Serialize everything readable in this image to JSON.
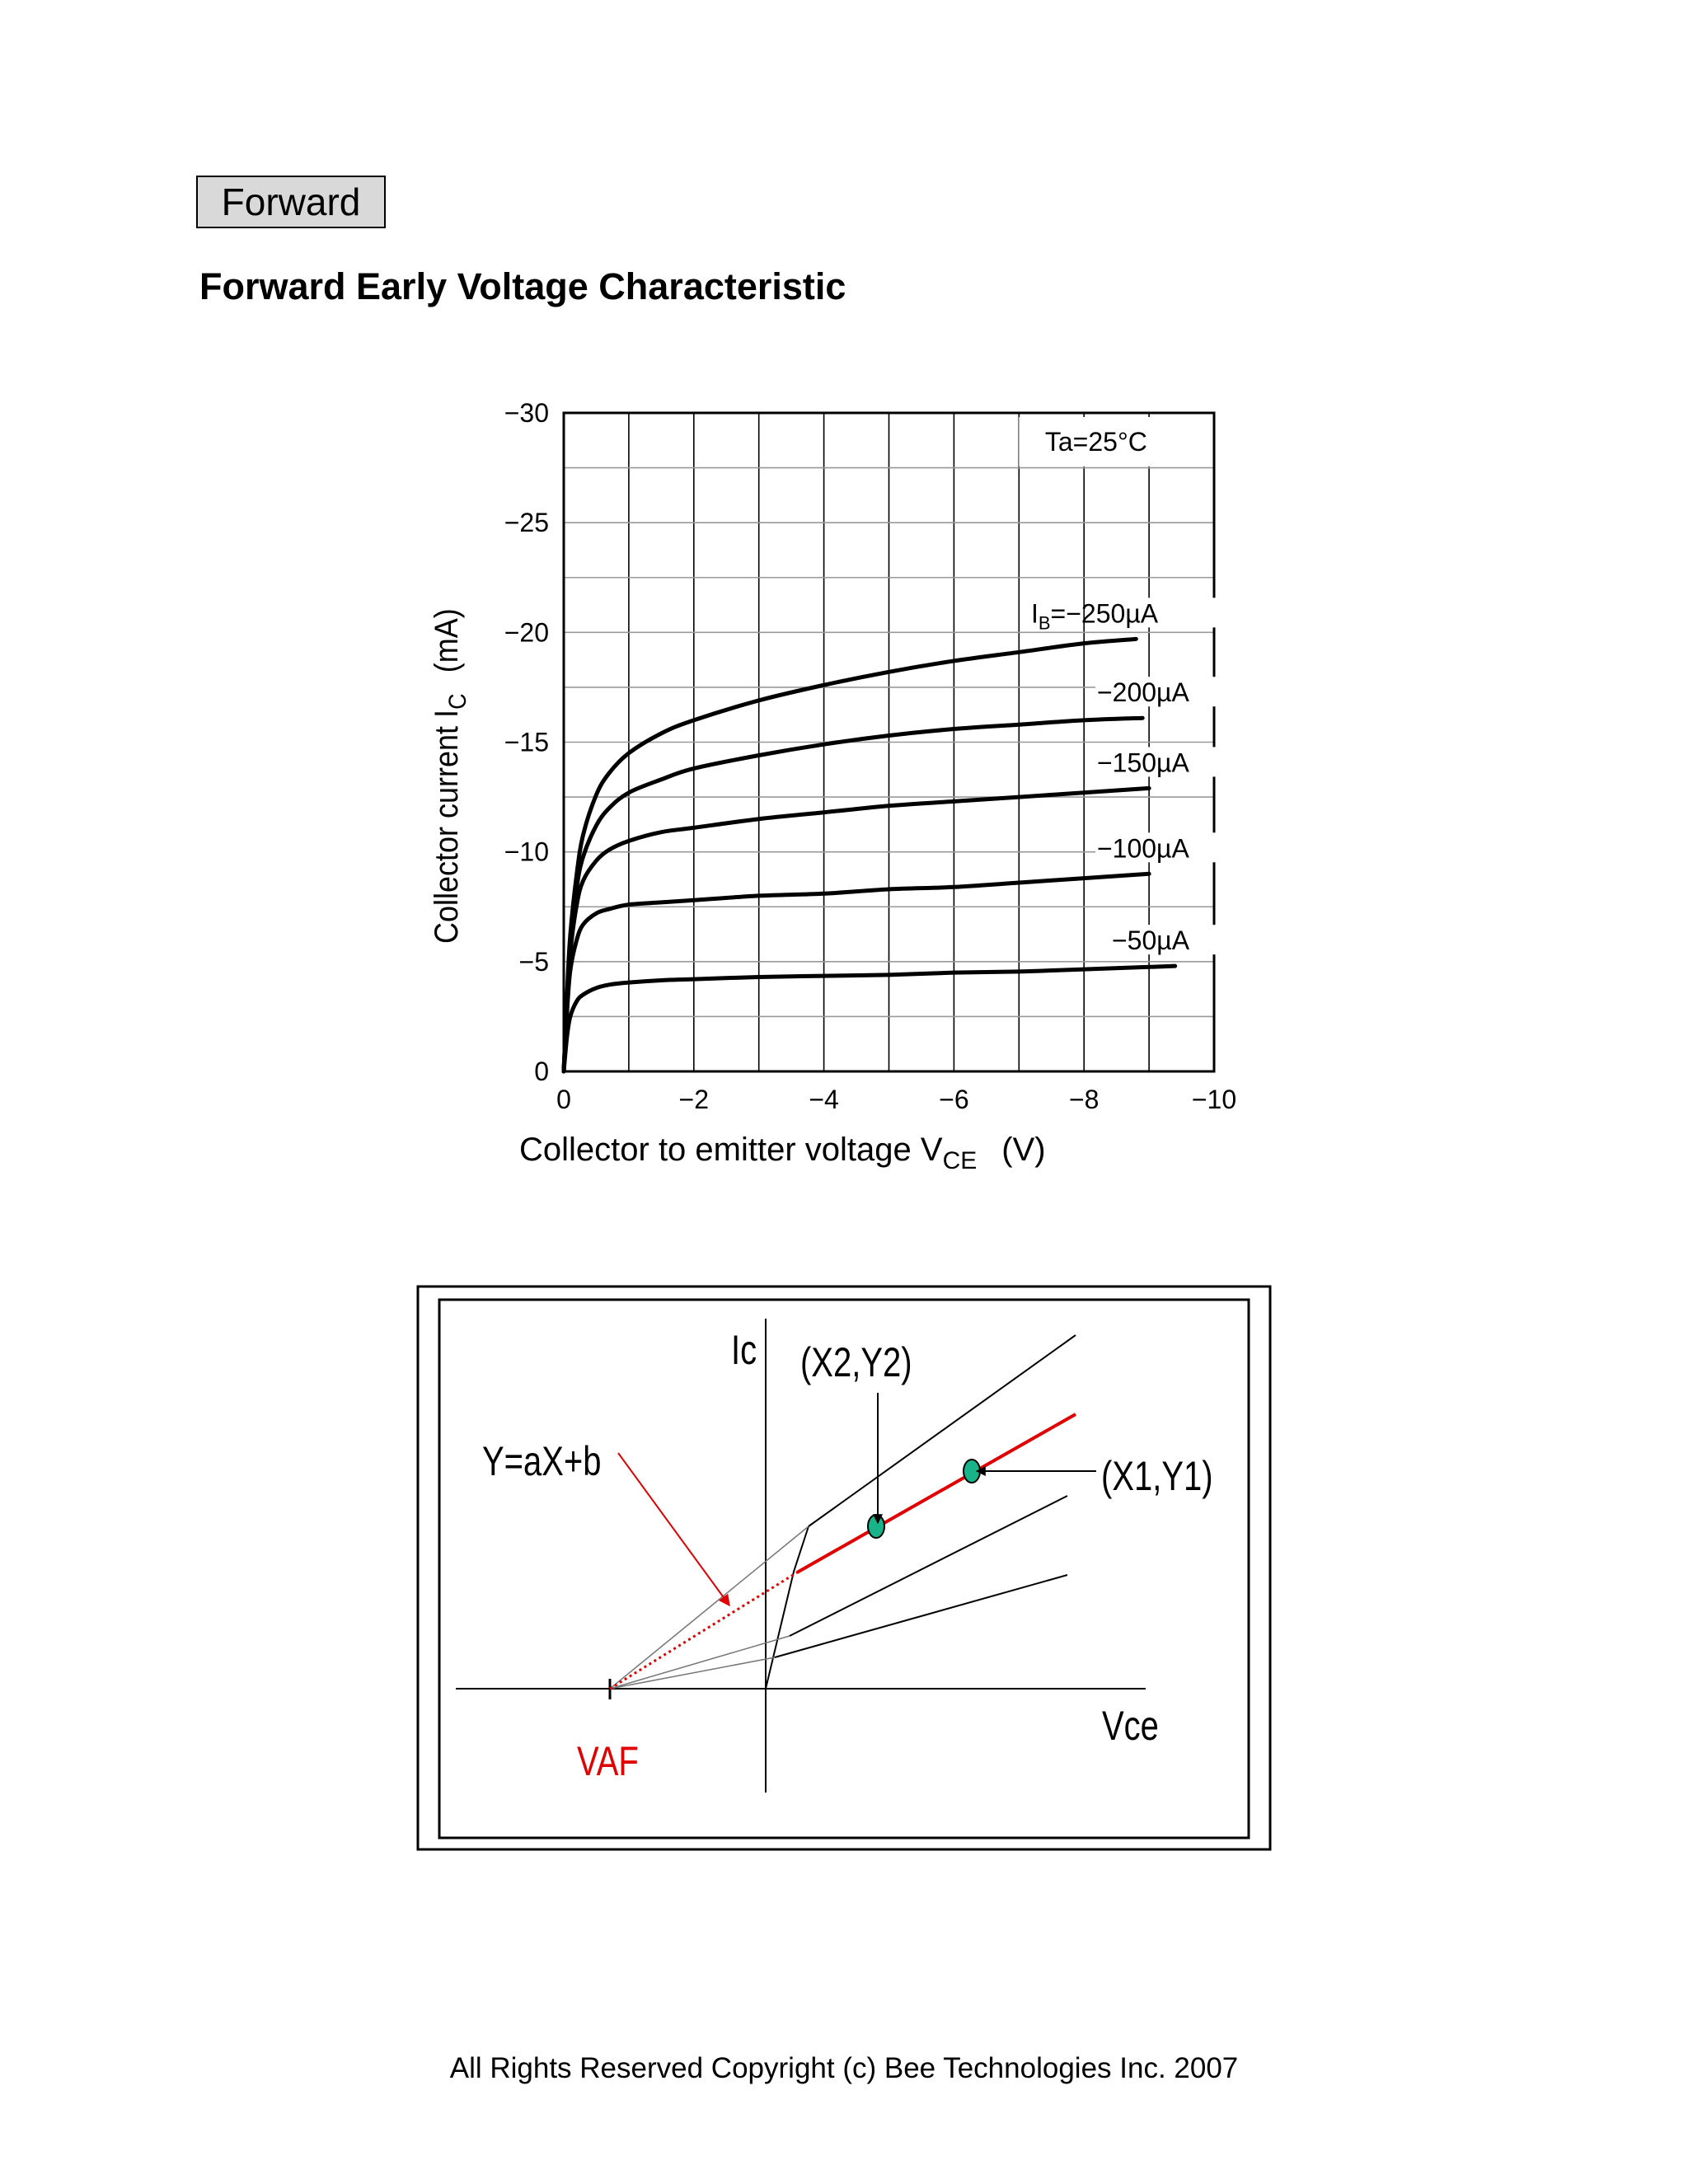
{
  "header": {
    "tag_label": "Forward",
    "title": "Forward Early Voltage Characteristic"
  },
  "chart_data": [
    {
      "type": "line",
      "title": "",
      "xlabel": "Collector to emitter voltage V",
      "xlabel_subscript": "CE",
      "xlabel_unit": "(V)",
      "ylabel": "Collector current I",
      "ylabel_subscript": "C",
      "ylabel_unit": "(mA)",
      "xlim": [
        0,
        -10
      ],
      "ylim": [
        0,
        -30
      ],
      "xticks": [
        0,
        -2,
        -4,
        -6,
        -8,
        -10
      ],
      "xtick_labels": [
        "0",
        "−2",
        "−4",
        "−6",
        "−8",
        "−10"
      ],
      "yticks": [
        0,
        -5,
        -10,
        -15,
        -20,
        -25,
        -30
      ],
      "ytick_labels": [
        "0",
        "−5",
        "−10",
        "−15",
        "−20",
        "−25",
        "−30"
      ],
      "grid": true,
      "annotation": "Ta=25°C",
      "series": [
        {
          "name": "I_B=−250µA",
          "label_main": "I",
          "label_sub": "B",
          "label_rest": "=−250µA",
          "points": [
            [
              0,
              0
            ],
            [
              -0.05,
              -3.5
            ],
            [
              -0.1,
              -6.2
            ],
            [
              -0.2,
              -9.0
            ],
            [
              -0.3,
              -10.8
            ],
            [
              -0.5,
              -12.6
            ],
            [
              -0.7,
              -13.6
            ],
            [
              -1,
              -14.5
            ],
            [
              -1.5,
              -15.4
            ],
            [
              -2,
              -16.0
            ],
            [
              -3,
              -16.9
            ],
            [
              -4,
              -17.6
            ],
            [
              -5,
              -18.2
            ],
            [
              -6,
              -18.7
            ],
            [
              -7,
              -19.1
            ],
            [
              -8,
              -19.5
            ],
            [
              -8.8,
              -19.7
            ]
          ]
        },
        {
          "name": "−200µA",
          "points": [
            [
              0,
              0
            ],
            [
              -0.05,
              -3.2
            ],
            [
              -0.1,
              -5.8
            ],
            [
              -0.2,
              -8.4
            ],
            [
              -0.3,
              -9.8
            ],
            [
              -0.5,
              -11.2
            ],
            [
              -0.7,
              -12.0
            ],
            [
              -1,
              -12.7
            ],
            [
              -1.5,
              -13.3
            ],
            [
              -2,
              -13.8
            ],
            [
              -3,
              -14.4
            ],
            [
              -4,
              -14.9
            ],
            [
              -5,
              -15.3
            ],
            [
              -6,
              -15.6
            ],
            [
              -7,
              -15.8
            ],
            [
              -8,
              -16.0
            ],
            [
              -8.9,
              -16.1
            ]
          ]
        },
        {
          "name": "−150µA",
          "points": [
            [
              0,
              0
            ],
            [
              -0.05,
              -3.0
            ],
            [
              -0.1,
              -5.4
            ],
            [
              -0.2,
              -7.6
            ],
            [
              -0.3,
              -8.7
            ],
            [
              -0.5,
              -9.6
            ],
            [
              -0.7,
              -10.1
            ],
            [
              -1,
              -10.5
            ],
            [
              -1.5,
              -10.9
            ],
            [
              -2,
              -11.1
            ],
            [
              -3,
              -11.5
            ],
            [
              -4,
              -11.8
            ],
            [
              -5,
              -12.1
            ],
            [
              -6,
              -12.3
            ],
            [
              -7,
              -12.5
            ],
            [
              -8,
              -12.7
            ],
            [
              -9,
              -12.9
            ]
          ]
        },
        {
          "name": "−100µA",
          "points": [
            [
              0,
              0
            ],
            [
              -0.05,
              -2.7
            ],
            [
              -0.1,
              -4.6
            ],
            [
              -0.2,
              -6.0
            ],
            [
              -0.3,
              -6.7
            ],
            [
              -0.5,
              -7.2
            ],
            [
              -0.7,
              -7.4
            ],
            [
              -1,
              -7.6
            ],
            [
              -1.5,
              -7.7
            ],
            [
              -2,
              -7.8
            ],
            [
              -3,
              -8.0
            ],
            [
              -4,
              -8.1
            ],
            [
              -5,
              -8.3
            ],
            [
              -6,
              -8.4
            ],
            [
              -7,
              -8.6
            ],
            [
              -8,
              -8.8
            ],
            [
              -9,
              -9.0
            ]
          ]
        },
        {
          "name": "−50µA",
          "points": [
            [
              0,
              0
            ],
            [
              -0.05,
              -1.6
            ],
            [
              -0.1,
              -2.5
            ],
            [
              -0.2,
              -3.2
            ],
            [
              -0.3,
              -3.5
            ],
            [
              -0.5,
              -3.8
            ],
            [
              -0.7,
              -3.95
            ],
            [
              -1,
              -4.05
            ],
            [
              -1.5,
              -4.15
            ],
            [
              -2,
              -4.2
            ],
            [
              -3,
              -4.3
            ],
            [
              -4,
              -4.35
            ],
            [
              -5,
              -4.4
            ],
            [
              -6,
              -4.5
            ],
            [
              -7,
              -4.55
            ],
            [
              -8,
              -4.65
            ],
            [
              -9.4,
              -4.8
            ]
          ]
        }
      ]
    },
    {
      "type": "diagram",
      "title": "",
      "y_axis_label": "Ic",
      "x_axis_label": "Vce",
      "equation_label": "Y=aX+b",
      "intercept_label": "VAF",
      "point_labels": [
        "(X2,Y2)",
        "(X1,Y1)"
      ],
      "colors": {
        "fit_line": "#e00000",
        "points": "#19b38a",
        "intercept_label": "#e00000"
      }
    }
  ],
  "footer": {
    "copyright": "All Rights Reserved Copyright (c) Bee Technologies Inc. 2007"
  }
}
